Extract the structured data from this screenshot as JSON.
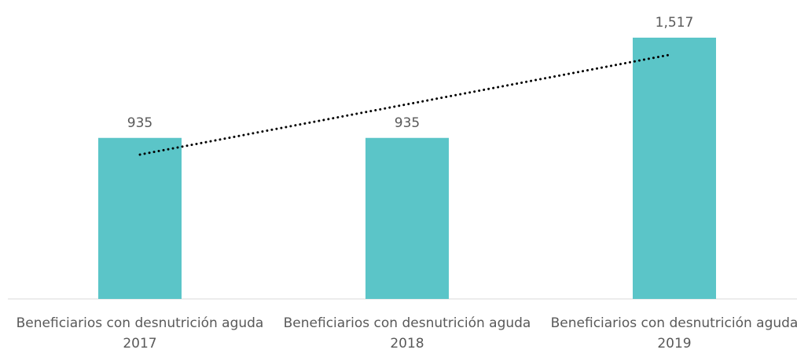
{
  "chart_data": {
    "type": "bar",
    "categories": [
      "Beneficiarios con desnutrición aguda 2017",
      "Beneficiarios con desnutrición aguda 2018",
      "Beneficiarios con desnutrición aguda 2019"
    ],
    "values": [
      935,
      935,
      1517
    ],
    "value_labels": [
      "935",
      "935",
      "1,517"
    ],
    "color": "#5bc5c8",
    "trendline": true
  }
}
